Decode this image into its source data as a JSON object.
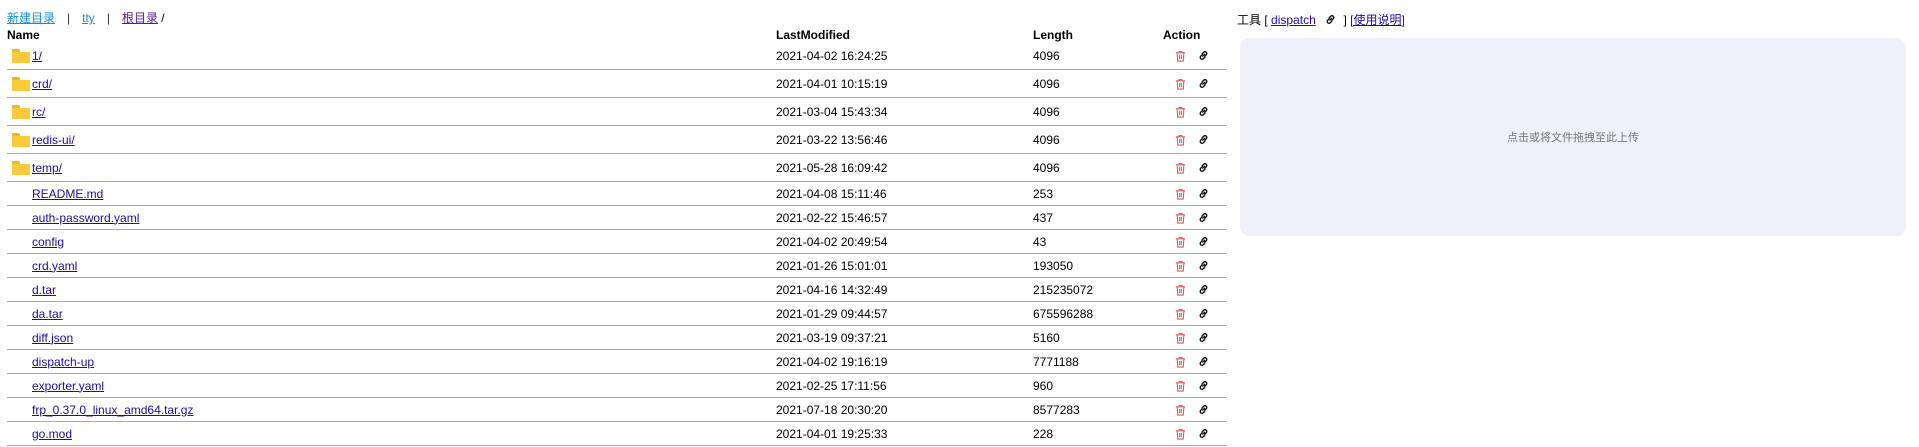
{
  "nav": {
    "new_dir": "新建目录",
    "sep1": "|",
    "tty": "tty",
    "sep2": "|",
    "root": "根目录",
    "path_sep": "/"
  },
  "table": {
    "headers": {
      "name": "Name",
      "modified": "LastModified",
      "length": "Length",
      "action": "Action"
    },
    "rows": [
      {
        "name": "1/",
        "modified": "2021-04-02 16:24:25",
        "length": "4096",
        "type": "dir"
      },
      {
        "name": "crd/",
        "modified": "2021-04-01 10:15:19",
        "length": "4096",
        "type": "dir"
      },
      {
        "name": "rc/",
        "modified": "2021-03-04 15:43:34",
        "length": "4096",
        "type": "dir"
      },
      {
        "name": "redis-ui/",
        "modified": "2021-03-22 13:56:46",
        "length": "4096",
        "type": "dir"
      },
      {
        "name": "temp/",
        "modified": "2021-05-28 16:09:42",
        "length": "4096",
        "type": "dir"
      },
      {
        "name": "README.md",
        "modified": "2021-04-08 15:11:46",
        "length": "253",
        "type": "file"
      },
      {
        "name": "auth-password.yaml",
        "modified": "2021-02-22 15:46:57",
        "length": "437",
        "type": "file"
      },
      {
        "name": "config",
        "modified": "2021-04-02 20:49:54",
        "length": "43",
        "type": "file"
      },
      {
        "name": "crd.yaml",
        "modified": "2021-01-26 15:01:01",
        "length": "193050",
        "type": "file"
      },
      {
        "name": "d.tar",
        "modified": "2021-04-16 14:32:49",
        "length": "215235072",
        "type": "file"
      },
      {
        "name": "da.tar",
        "modified": "2021-01-29 09:44:57",
        "length": "675596288",
        "type": "file"
      },
      {
        "name": "diff.json",
        "modified": "2021-03-19 09:37:21",
        "length": "5160",
        "type": "file"
      },
      {
        "name": "dispatch-up",
        "modified": "2021-04-02 19:16:19",
        "length": "7771188",
        "type": "file"
      },
      {
        "name": "exporter.yaml",
        "modified": "2021-02-25 17:11:56",
        "length": "960",
        "type": "file"
      },
      {
        "name": "frp_0.37.0_linux_amd64.tar.gz",
        "modified": "2021-07-18 20:30:20",
        "length": "8577283",
        "type": "file"
      },
      {
        "name": "go.mod",
        "modified": "2021-04-01 19:25:33",
        "length": "228",
        "type": "file"
      }
    ]
  },
  "tools": {
    "label": "工具",
    "open_bracket": "[",
    "dispatch": "dispatch",
    "close_bracket": "]",
    "help": "[使用说明]"
  },
  "upload": {
    "hint": "点击或将文件拖拽至此上传"
  },
  "colors": {
    "delete_icon": "#e05a5a",
    "link": "#1a0dab",
    "dropzone_bg": "#eef0fa",
    "folder": "#fcc93d"
  },
  "icons": {
    "delete": "trash-icon",
    "link": "link-icon",
    "folder": "folder-icon"
  }
}
